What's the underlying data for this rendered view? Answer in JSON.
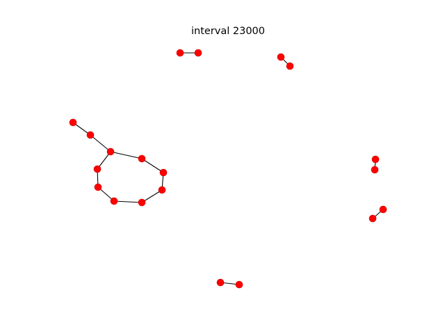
{
  "title": "interval 23000",
  "colors": {
    "node": "#ff0000",
    "edge": "#000000",
    "background": "#ffffff"
  },
  "graph": {
    "nodes": [
      "n1",
      "n2",
      "n3",
      "n4",
      "n5",
      "n6",
      "n7",
      "n8",
      "n9",
      "n10",
      "n11",
      "n12",
      "n13",
      "n14",
      "n15",
      "n16",
      "n17",
      "n18",
      "n19",
      "n20",
      "n21",
      "n22"
    ],
    "edges": [
      [
        "n1",
        "n2"
      ],
      [
        "n3",
        "n4"
      ],
      [
        "n5",
        "n6"
      ],
      [
        "n6",
        "n7"
      ],
      [
        "n7",
        "n8"
      ],
      [
        "n8",
        "n9"
      ],
      [
        "n9",
        "n10"
      ],
      [
        "n10",
        "n11"
      ],
      [
        "n11",
        "n12"
      ],
      [
        "n12",
        "n13"
      ],
      [
        "n13",
        "n14"
      ],
      [
        "n14",
        "n7"
      ],
      [
        "n15",
        "n16"
      ],
      [
        "n17",
        "n18"
      ],
      [
        "n19",
        "n20"
      ]
    ]
  }
}
